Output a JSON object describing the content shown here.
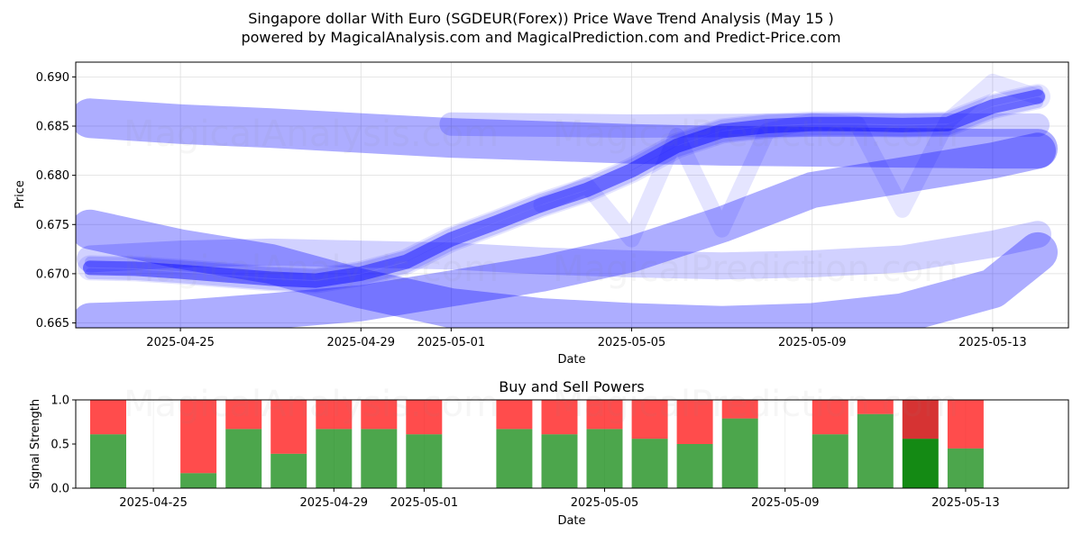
{
  "header": {
    "title": "Singapore dollar With Euro (SGDEUR(Forex)) Price Wave Trend Analysis (May 15 )",
    "subtitle": "powered by MagicalAnalysis.com and MagicalPrediction.com and Predict-Price.com"
  },
  "watermarks": {
    "left": "MagicalAnalysis.com",
    "right": "MagicalPrediction.com"
  },
  "colors": {
    "wave": "#0000ff",
    "buy": "#008000",
    "sell": "#ff0000",
    "buy_strong": "#008000",
    "sell_strong": "#cc0000"
  },
  "chart_data": [
    {
      "type": "line",
      "title": "",
      "xlabel": "Date",
      "ylabel": "Price",
      "ylim": [
        0.6645,
        0.6915
      ],
      "xlim": [
        "2025-04-23",
        "2025-05-15"
      ],
      "x_ticks": [
        "2025-04-25",
        "2025-04-29",
        "2025-05-01",
        "2025-05-05",
        "2025-05-09",
        "2025-05-13"
      ],
      "y_ticks": [
        0.665,
        0.67,
        0.675,
        0.68,
        0.685,
        0.69
      ],
      "grid": true,
      "series": [
        {
          "name": "wave-upper-flat",
          "x": [
            "2025-04-23",
            "2025-04-25",
            "2025-04-27",
            "2025-04-29",
            "2025-05-01",
            "2025-05-03",
            "2025-05-05",
            "2025-05-07",
            "2025-05-09",
            "2025-05-11",
            "2025-05-13",
            "2025-05-14"
          ],
          "values": [
            0.6858,
            0.6852,
            0.6848,
            0.6843,
            0.6838,
            0.6835,
            0.6832,
            0.683,
            0.6829,
            0.6828,
            0.6827,
            0.6827
          ]
        },
        {
          "name": "wave-upper-flat-2",
          "x": [
            "2025-05-01",
            "2025-05-05",
            "2025-05-09",
            "2025-05-13",
            "2025-05-14"
          ],
          "values": [
            0.6852,
            0.685,
            0.6851,
            0.6851,
            0.6851
          ]
        },
        {
          "name": "wave-lower-rising",
          "x": [
            "2025-04-23",
            "2025-04-25",
            "2025-04-27",
            "2025-04-29",
            "2025-05-01",
            "2025-05-03",
            "2025-05-05",
            "2025-05-07",
            "2025-05-09",
            "2025-05-11",
            "2025-05-13",
            "2025-05-14"
          ],
          "values": [
            0.6652,
            0.6655,
            0.6662,
            0.667,
            0.6685,
            0.67,
            0.672,
            0.675,
            0.6785,
            0.68,
            0.6815,
            0.6825
          ]
        },
        {
          "name": "wave-lower-falling",
          "x": [
            "2025-04-23",
            "2025-04-25",
            "2025-04-27",
            "2025-04-29",
            "2025-05-01",
            "2025-05-03",
            "2025-05-05",
            "2025-05-07",
            "2025-05-09",
            "2025-05-11",
            "2025-05-13",
            "2025-05-14"
          ],
          "values": [
            0.6745,
            0.6725,
            0.671,
            0.6685,
            0.6665,
            0.6655,
            0.665,
            0.6647,
            0.665,
            0.666,
            0.6685,
            0.6722
          ]
        },
        {
          "name": "wave-middle-band",
          "x": [
            "2025-04-23",
            "2025-04-25",
            "2025-04-27",
            "2025-04-29",
            "2025-05-01",
            "2025-05-03",
            "2025-05-05",
            "2025-05-07",
            "2025-05-09",
            "2025-05-11",
            "2025-05-13",
            "2025-05-14"
          ],
          "values": [
            0.6715,
            0.672,
            0.6722,
            0.672,
            0.6718,
            0.6713,
            0.671,
            0.6708,
            0.671,
            0.6715,
            0.673,
            0.674
          ]
        },
        {
          "name": "price-main",
          "x": [
            "2025-04-23",
            "2025-04-24",
            "2025-04-25",
            "2025-04-27",
            "2025-04-28",
            "2025-04-29",
            "2025-04-30",
            "2025-05-01",
            "2025-05-02",
            "2025-05-03",
            "2025-05-04",
            "2025-05-05",
            "2025-05-06",
            "2025-05-07",
            "2025-05-08",
            "2025-05-09",
            "2025-05-10",
            "2025-05-11",
            "2025-05-12",
            "2025-05-13",
            "2025-05-14"
          ],
          "values": [
            0.6706,
            0.6705,
            0.6702,
            0.6695,
            0.6693,
            0.67,
            0.6712,
            0.6735,
            0.6752,
            0.677,
            0.6785,
            0.6805,
            0.683,
            0.6845,
            0.685,
            0.6852,
            0.6852,
            0.6851,
            0.6852,
            0.687,
            0.688
          ]
        },
        {
          "name": "price-zigzag",
          "x": [
            "2025-05-03",
            "2025-05-04",
            "2025-05-05",
            "2025-05-06",
            "2025-05-07",
            "2025-05-08",
            "2025-05-09",
            "2025-05-10",
            "2025-05-11",
            "2025-05-12",
            "2025-05-13",
            "2025-05-14"
          ],
          "values": [
            0.677,
            0.679,
            0.6735,
            0.684,
            0.6745,
            0.6845,
            0.6855,
            0.6852,
            0.6765,
            0.6855,
            0.6895,
            0.688
          ]
        }
      ]
    },
    {
      "type": "bar",
      "title": "Buy and Sell Powers",
      "xlabel": "Date",
      "ylabel": "Signal Strength",
      "ylim": [
        0,
        1.0
      ],
      "y_ticks": [
        0.0,
        0.5,
        1.0
      ],
      "x_ticks": [
        "2025-04-25",
        "2025-04-29",
        "2025-05-01",
        "2025-05-05",
        "2025-05-09",
        "2025-05-13"
      ],
      "categories": [
        "2025-04-24",
        "2025-04-26",
        "2025-04-27",
        "2025-04-28",
        "2025-04-29",
        "2025-04-30",
        "2025-05-01",
        "2025-05-03",
        "2025-05-04",
        "2025-05-05",
        "2025-05-06",
        "2025-05-07",
        "2025-05-08",
        "2025-05-10",
        "2025-05-11",
        "2025-05-12",
        "2025-05-13"
      ],
      "series": [
        {
          "name": "buy",
          "values": [
            0.61,
            0.17,
            0.67,
            0.39,
            0.67,
            0.67,
            0.61,
            0.67,
            0.61,
            0.67,
            0.56,
            0.5,
            0.79,
            0.61,
            0.84,
            0.56,
            0.45
          ]
        },
        {
          "name": "sell",
          "values": [
            0.39,
            0.83,
            0.33,
            0.61,
            0.33,
            0.33,
            0.39,
            0.33,
            0.39,
            0.33,
            0.44,
            0.5,
            0.21,
            0.39,
            0.16,
            0.44,
            0.55
          ]
        }
      ],
      "highlight_index": 15
    }
  ]
}
